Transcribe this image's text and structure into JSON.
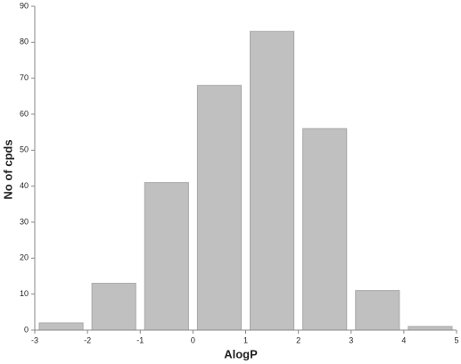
{
  "chart_data": {
    "type": "histogram",
    "x_label": "AlogP",
    "y_label": "No of cpds",
    "bins": [
      -3,
      -2,
      -1,
      0,
      1,
      2,
      3,
      4,
      5
    ],
    "values": [
      2,
      13,
      41,
      68,
      83,
      56,
      11,
      1
    ],
    "color": "#c0c0c0",
    "xlim": [
      -3,
      5
    ],
    "xticks": [
      -3,
      -2,
      -1,
      0,
      1,
      2,
      3,
      4,
      5
    ],
    "ylim": [
      0,
      90
    ],
    "yticks": [
      0,
      10,
      20,
      30,
      40,
      50,
      60,
      70,
      80,
      90
    ]
  }
}
